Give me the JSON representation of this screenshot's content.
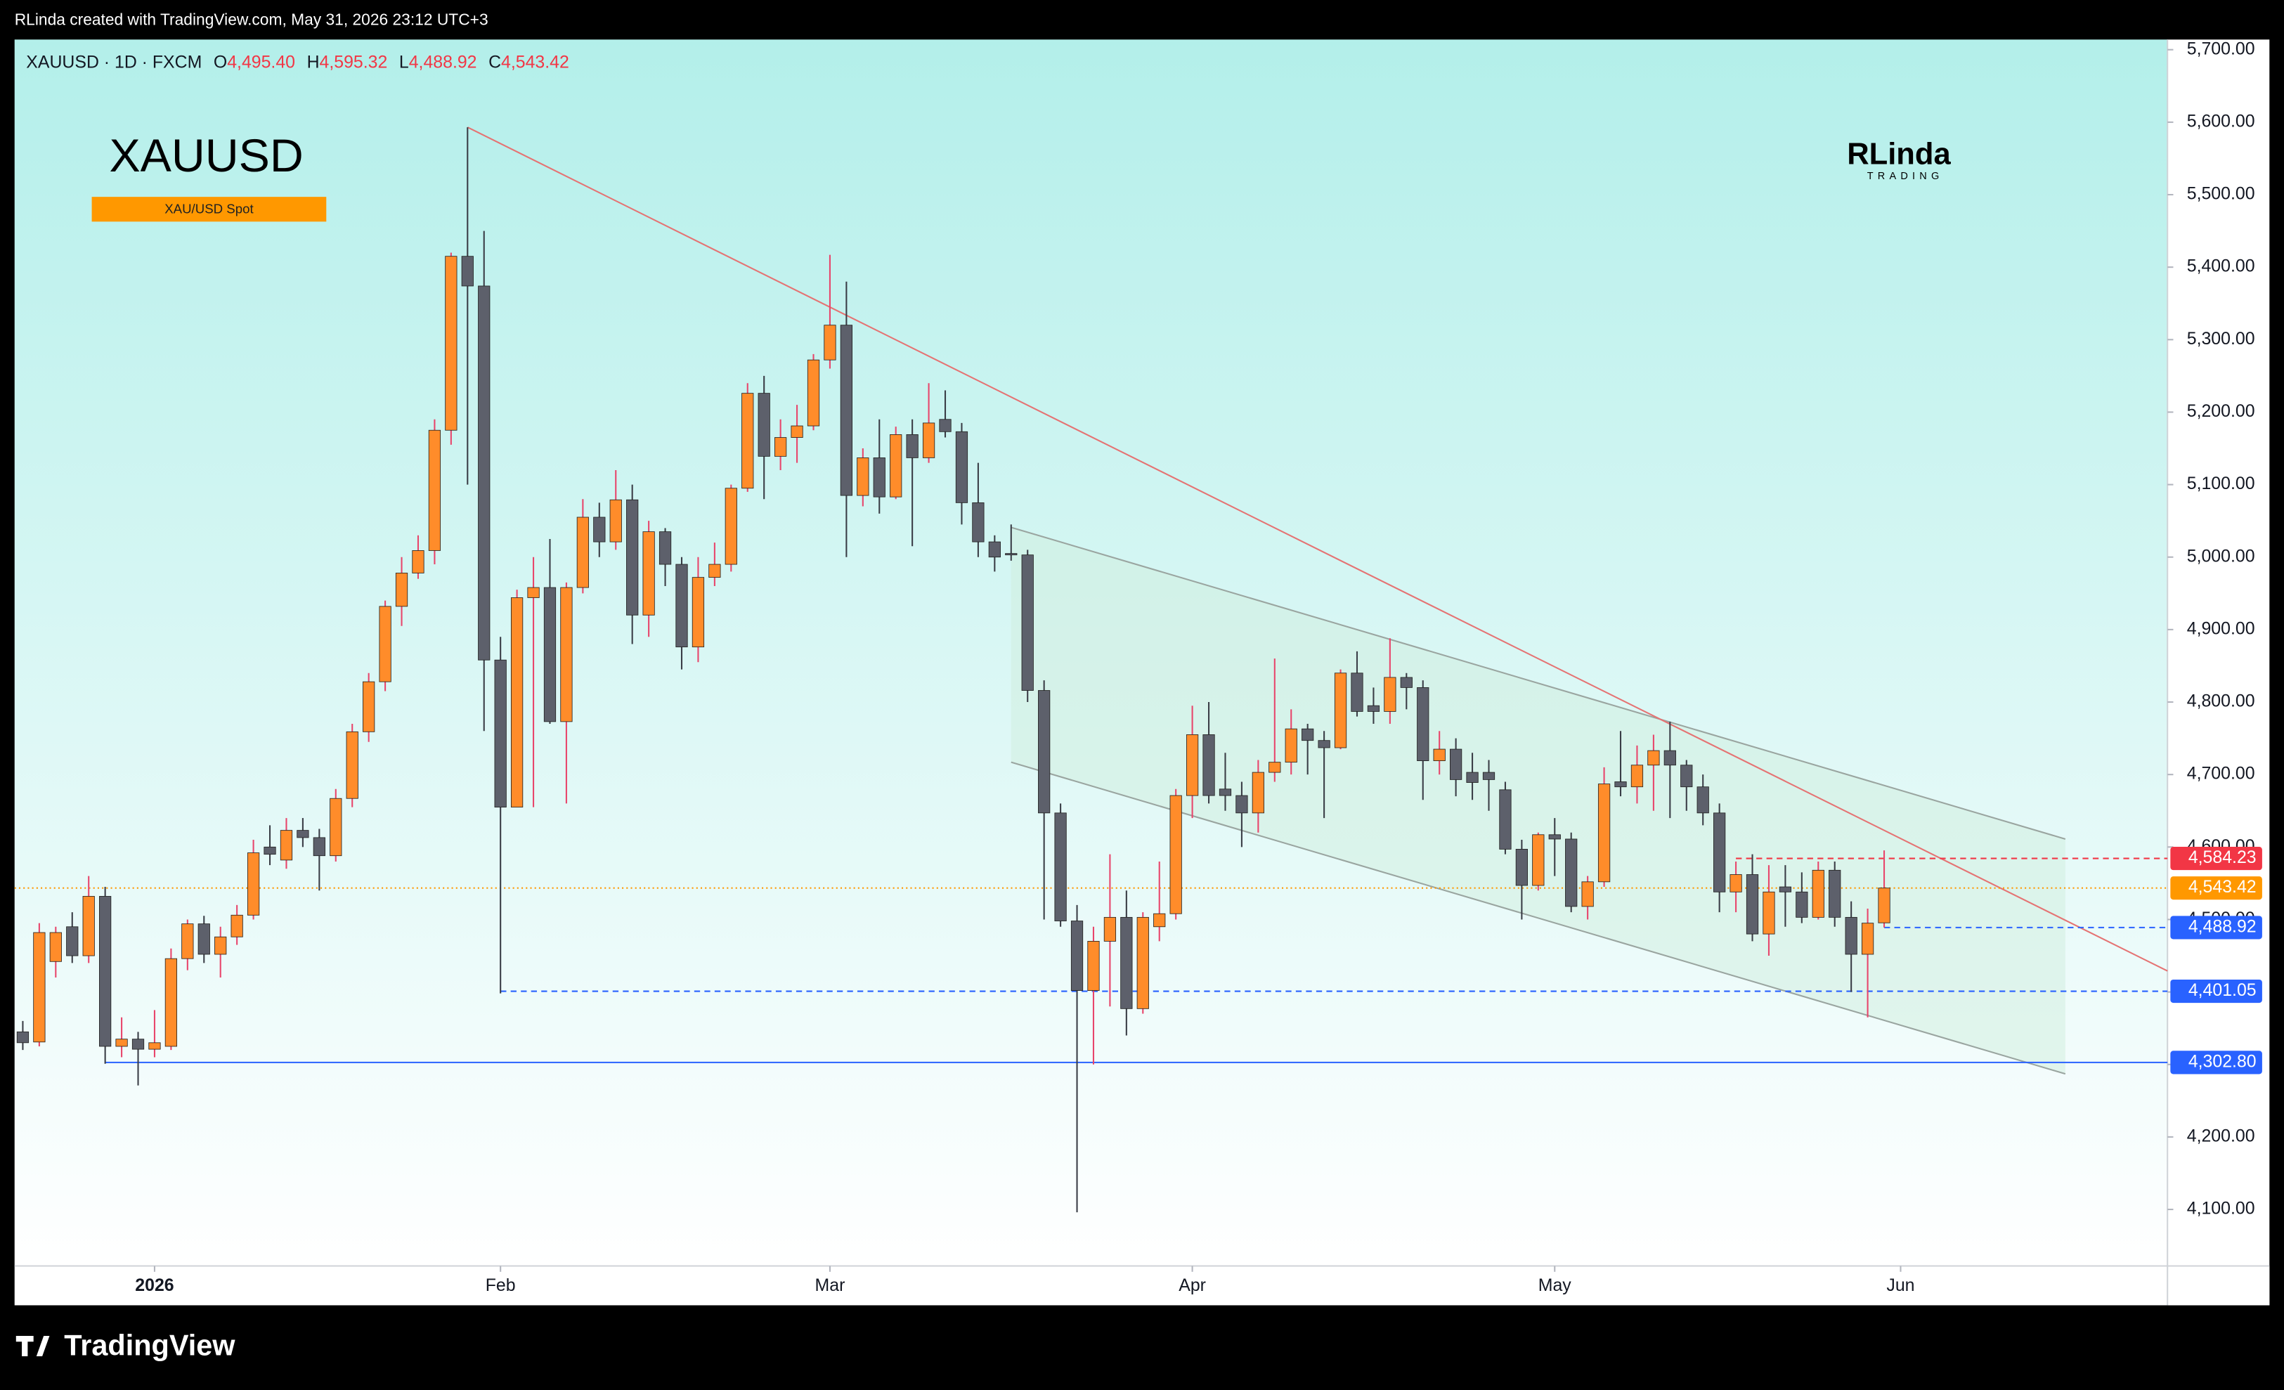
{
  "header": {
    "credit": "RLinda created with TradingView.com, May 31, 2026 23:12 UTC+3",
    "symbol": "XAUUSD · 1D · FXCM",
    "o_label": "O",
    "o": "4,495.40",
    "h_label": "H",
    "h": "4,595.32",
    "l_label": "L",
    "l": "4,488.92",
    "c_label": "C",
    "c": "4,543.42"
  },
  "title": "XAUUSD",
  "tag": "XAU/USD Spot",
  "logo": {
    "name": "RLinda",
    "sub": "TRADING"
  },
  "footer": "TradingView",
  "chart_data": {
    "type": "candlestick",
    "up_color": "#ff8c2a",
    "down_color": "#5d606b",
    "up_wick": "#e8456b",
    "down_wick": "#3a3d46",
    "open": [
      4345,
      4331,
      4442,
      4490,
      4450,
      4532,
      4325,
      4335,
      4321,
      4325,
      4446,
      4494,
      4452,
      4476,
      4506,
      4600,
      4582,
      4623,
      4613,
      4588,
      4667,
      4759,
      4828,
      4932,
      4978,
      5009,
      5175,
      5415,
      5374,
      4858,
      4655,
      4944,
      4958,
      4773,
      4958,
      5055,
      5021,
      5079,
      4920,
      5035,
      4990,
      4876,
      4972,
      4990,
      5095,
      5226,
      5139,
      5165,
      5181,
      5272,
      5320,
      5085,
      5137,
      5083,
      5169,
      5137,
      5190,
      5173,
      5075,
      5021,
      5005,
      5003,
      4816,
      4647,
      4498,
      4402,
      4470,
      4503,
      4377,
      4490,
      4508,
      4671,
      4755,
      4680,
      4671,
      4647,
      4703,
      4717,
      4763,
      4747,
      4737,
      4840,
      4795,
      4787,
      4834,
      4820,
      4719,
      4735,
      4703,
      4703,
      4679,
      4597,
      4547,
      4617,
      4611,
      4518,
      4552,
      4690,
      4683,
      4713,
      4733,
      4713,
      4683,
      4647,
      4538,
      4562,
      4480,
      4545,
      4538,
      4503,
      4568,
      4503,
      4452,
      4495.4
    ],
    "high": [
      4360,
      4495,
      4490,
      4510,
      4560,
      4545,
      4365,
      4345,
      4375,
      4460,
      4500,
      4505,
      4490,
      4520,
      4610,
      4630,
      4640,
      4640,
      4625,
      4680,
      4770,
      4840,
      4940,
      5000,
      5030,
      5190,
      5420,
      5593,
      5450,
      4890,
      4955,
      5000,
      5025,
      4965,
      5080,
      5075,
      5120,
      5100,
      5050,
      5040,
      5000,
      5000,
      5020,
      5100,
      5240,
      5250,
      5190,
      5210,
      5280,
      5417,
      5380,
      5150,
      5190,
      5180,
      5190,
      5240,
      5230,
      5185,
      5130,
      5030,
      5045,
      5010,
      4830,
      4660,
      4520,
      4490,
      4590,
      4540,
      4510,
      4580,
      4680,
      4795,
      4800,
      4730,
      4690,
      4720,
      4860,
      4790,
      4770,
      4760,
      4845,
      4870,
      4820,
      4888,
      4840,
      4830,
      4760,
      4750,
      4730,
      4720,
      4690,
      4610,
      4620,
      4640,
      4620,
      4560,
      4710,
      4760,
      4740,
      4755,
      4773,
      4720,
      4700,
      4660,
      4580,
      4590,
      4575,
      4575,
      4565,
      4580,
      4580,
      4525,
      4515,
      4595.32
    ],
    "low": [
      4320,
      4325,
      4420,
      4440,
      4440,
      4301,
      4310,
      4271,
      4310,
      4320,
      4430,
      4440,
      4420,
      4465,
      4500,
      4575,
      4570,
      4600,
      4540,
      4580,
      4655,
      4745,
      4815,
      4905,
      4970,
      4990,
      5155,
      5100,
      4760,
      4398,
      4655,
      4655,
      4770,
      4660,
      4950,
      5000,
      5010,
      4880,
      4890,
      4960,
      4845,
      4855,
      4960,
      4980,
      5090,
      5080,
      5120,
      5130,
      5175,
      5260,
      5000,
      5070,
      5060,
      5080,
      5015,
      5130,
      5165,
      5045,
      5000,
      4980,
      4995,
      4800,
      4500,
      4490,
      4096,
      4300,
      4380,
      4340,
      4370,
      4470,
      4500,
      4640,
      4660,
      4650,
      4600,
      4620,
      4690,
      4700,
      4700,
      4640,
      4735,
      4780,
      4770,
      4770,
      4790,
      4665,
      4700,
      4670,
      4665,
      4650,
      4590,
      4500,
      4540,
      4560,
      4510,
      4500,
      4545,
      4670,
      4660,
      4650,
      4640,
      4650,
      4630,
      4510,
      4510,
      4470,
      4450,
      4490,
      4495,
      4500,
      4490,
      4400,
      4365,
      4488.92
    ],
    "close": [
      4330,
      4482,
      4482,
      4450,
      4532,
      4325,
      4335,
      4321,
      4330,
      4446,
      4494,
      4452,
      4476,
      4506,
      4592,
      4590,
      4623,
      4613,
      4588,
      4667,
      4759,
      4828,
      4932,
      4978,
      5009,
      5175,
      5415,
      5374,
      4858,
      4655,
      4944,
      4958,
      4773,
      4958,
      5055,
      5021,
      5079,
      4920,
      5035,
      4990,
      4876,
      4972,
      4990,
      5095,
      5226,
      5139,
      5165,
      5181,
      5272,
      5320,
      5085,
      5137,
      5083,
      5169,
      5137,
      5185,
      5173,
      5075,
      5021,
      5000,
      5003,
      4816,
      4647,
      4498,
      4402,
      4470,
      4503,
      4377,
      4503,
      4508,
      4671,
      4755,
      4671,
      4671,
      4647,
      4703,
      4717,
      4763,
      4747,
      4737,
      4840,
      4787,
      4787,
      4834,
      4820,
      4719,
      4735,
      4693,
      4689,
      4693,
      4597,
      4547,
      4617,
      4611,
      4518,
      4552,
      4687,
      4683,
      4713,
      4733,
      4713,
      4683,
      4647,
      4538,
      4562,
      4480,
      4538,
      4538,
      4503,
      4568,
      4503,
      4452,
      4495,
      4543.42
    ],
    "xlim": [
      -0.5,
      130.2
    ],
    "xticks": [
      {
        "value": 8,
        "label": "2026"
      },
      {
        "value": 29,
        "label": "Feb"
      },
      {
        "value": 49,
        "label": "Mar"
      },
      {
        "value": 71,
        "label": "Apr"
      },
      {
        "value": 93,
        "label": "May"
      },
      {
        "value": 114,
        "label": "Jun"
      }
    ],
    "ylim": [
      4022,
      5714
    ],
    "yticks": [
      {
        "value": 4100,
        "label": "4,100.00"
      },
      {
        "value": 4200,
        "label": "4,200.00"
      },
      {
        "value": 4300,
        "label": "4,300.00"
      },
      {
        "value": 4400,
        "label": "4,400.00"
      },
      {
        "value": 4500,
        "label": "4,500.00"
      },
      {
        "value": 4600,
        "label": "4,600.00"
      },
      {
        "value": 4700,
        "label": "4,700.00"
      },
      {
        "value": 4800,
        "label": "4,800.00"
      },
      {
        "value": 4900,
        "label": "4,900.00"
      },
      {
        "value": 5000,
        "label": "5,000.00"
      },
      {
        "value": 5100,
        "label": "5,100.00"
      },
      {
        "value": 5200,
        "label": "5,200.00"
      },
      {
        "value": 5300,
        "label": "5,300.00"
      },
      {
        "value": 5400,
        "label": "5,400.00"
      },
      {
        "value": 5500,
        "label": "5,500.00"
      },
      {
        "value": 5600,
        "label": "5,600.00"
      },
      {
        "value": 5700,
        "label": "5,700.00"
      }
    ],
    "price_lines": [
      {
        "value": 4584.23,
        "label": "4,584.23",
        "color": "#f23645",
        "from": 104,
        "dash": "4 3"
      },
      {
        "value": 4543.42,
        "label": "4,543.42",
        "color": "#ff9800",
        "dash": "1 2"
      },
      {
        "value": 4488.92,
        "label": "4,488.92",
        "color": "#2962ff",
        "from": 113,
        "dash": "4 3"
      },
      {
        "value": 4401.05,
        "label": "4,401.05",
        "color": "#2962ff",
        "from": 29,
        "dash": "4 3"
      },
      {
        "value": 4302.8,
        "label": "4,302.80",
        "color": "#2962ff",
        "from": 5
      }
    ],
    "trendline": {
      "color": "#e57373",
      "points": [
        [
          27,
          5593
        ],
        [
          130.2,
          4429
        ]
      ]
    },
    "channel": {
      "color": "#9aa5a0",
      "fill": "#cfeede",
      "top": [
        [
          60,
          5041
        ],
        [
          124,
          4611
        ]
      ],
      "bottom": [
        [
          60,
          4717
        ],
        [
          124,
          4287
        ]
      ]
    }
  }
}
